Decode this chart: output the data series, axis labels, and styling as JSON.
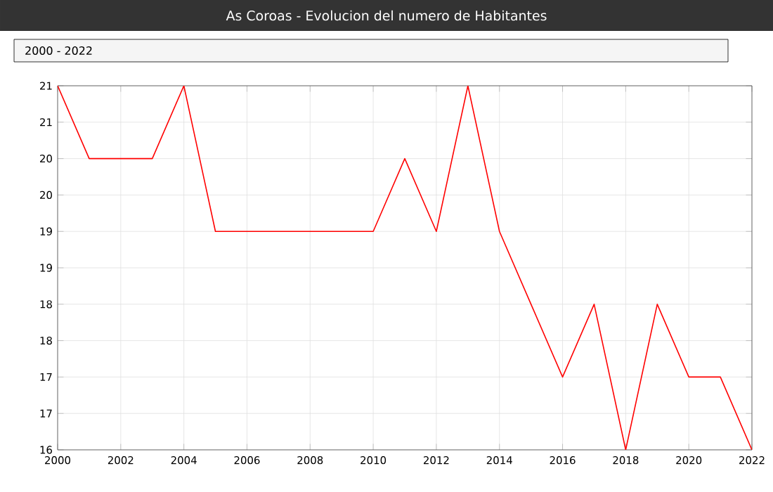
{
  "chart_data": {
    "type": "line",
    "title": "As Coroas - Evolucion del numero de Habitantes",
    "subtitle": "2000 - 2022",
    "x": [
      2000,
      2001,
      2002,
      2003,
      2004,
      2005,
      2006,
      2007,
      2008,
      2009,
      2010,
      2011,
      2012,
      2013,
      2014,
      2015,
      2016,
      2017,
      2018,
      2019,
      2020,
      2021,
      2022
    ],
    "series": [
      {
        "color": "#ff0000",
        "values": [
          21,
          20,
          20,
          20,
          21,
          19,
          19,
          19,
          19,
          19,
          19,
          20,
          19,
          21,
          19,
          18,
          17,
          18,
          16,
          18,
          17,
          17,
          16
        ]
      }
    ],
    "xlim": [
      2000,
      2022
    ],
    "xticks": [
      2000,
      2002,
      2004,
      2006,
      2008,
      2010,
      2012,
      2014,
      2016,
      2018,
      2020,
      2022
    ],
    "ylim": [
      16,
      21
    ],
    "yticks": [
      16,
      {
        "value": 16.5,
        "label": "17"
      },
      17,
      {
        "value": 17.5,
        "label": "18"
      },
      18,
      {
        "value": 18.5,
        "label": "19"
      },
      19,
      {
        "value": 19.5,
        "label": "20"
      },
      20,
      {
        "value": 20.5,
        "label": "21"
      },
      21
    ],
    "grid": true,
    "marker": "none",
    "line_style": "solid"
  }
}
